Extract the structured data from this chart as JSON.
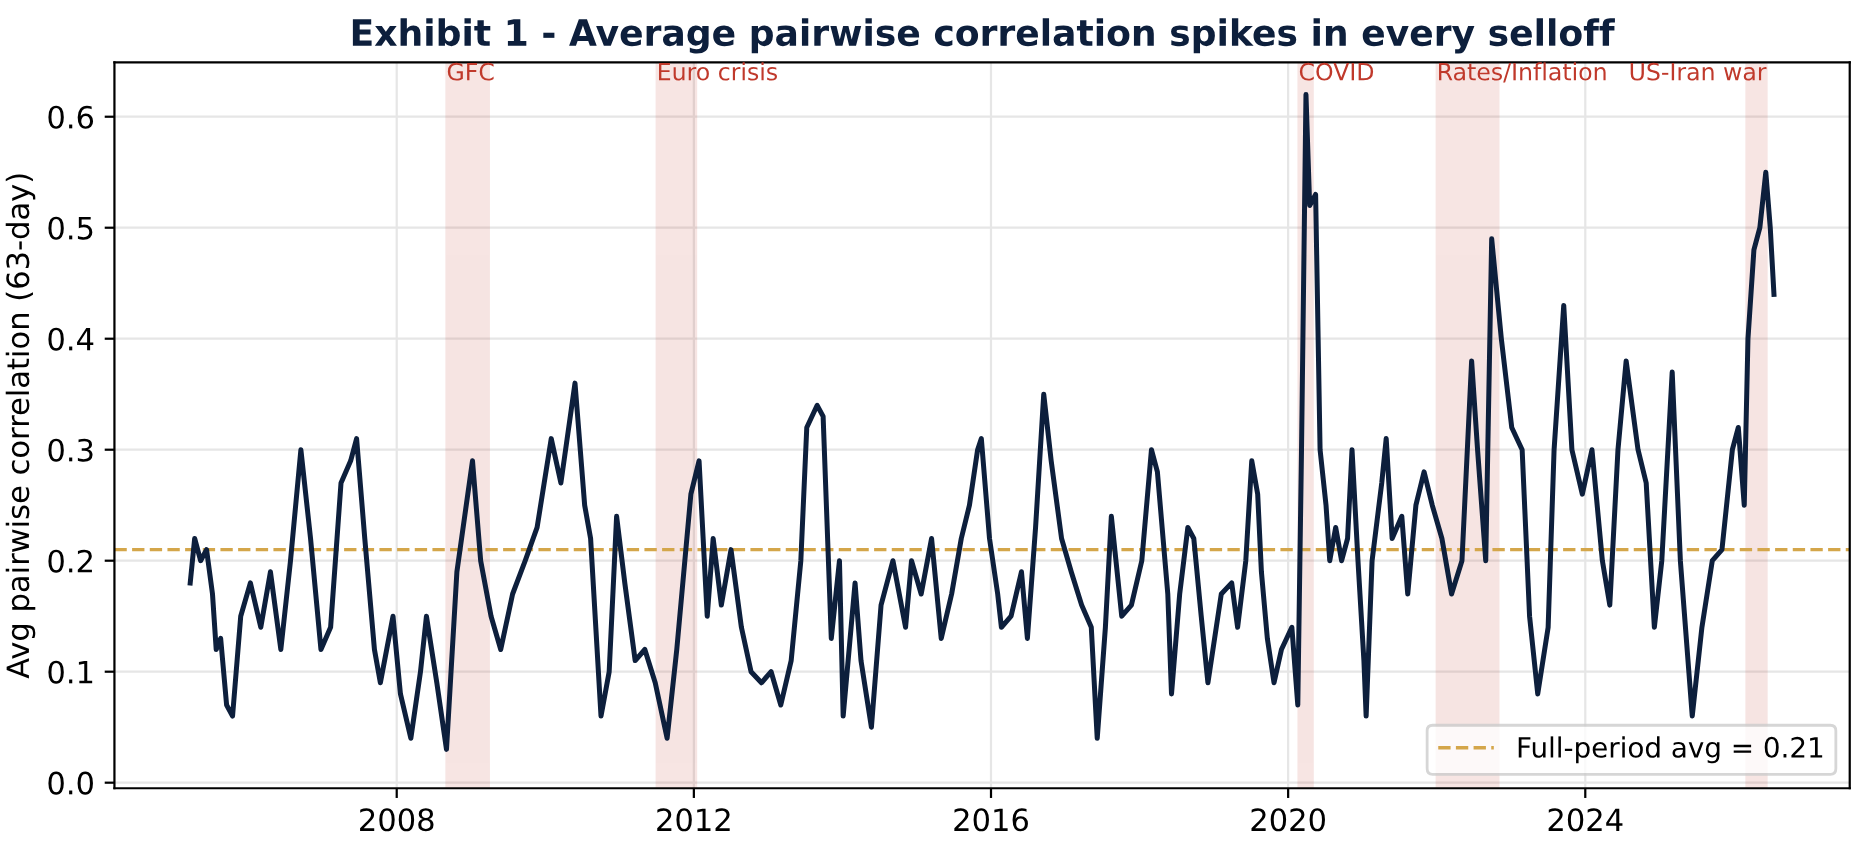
{
  "chart_data": {
    "type": "line",
    "title": "Exhibit 1 - Average pairwise correlation spikes in every selloff",
    "ylabel": "Avg pairwise correlation (63-day)",
    "xlim": [
      2004.2,
      2027.56
    ],
    "xticks": [
      2008,
      2012,
      2016,
      2020,
      2024
    ],
    "ylim": [
      -0.005,
      0.649
    ],
    "yticks": [
      {
        "value": 0,
        "label": "0.0"
      },
      0.1,
      0.2,
      0.3,
      0.4,
      0.5,
      0.6
    ],
    "grid": true,
    "legend": "bottom right",
    "line_style": "solid",
    "marker": "none",
    "series": [
      {
        "color": "#0d1f3c",
        "x": [
          2005.22,
          2005.28,
          2005.36,
          2005.44,
          2005.52,
          2005.57,
          2005.63,
          2005.71,
          2005.79,
          2005.9,
          2006.03,
          2006.17,
          2006.3,
          2006.44,
          2006.57,
          2006.71,
          2006.84,
          2006.98,
          2007.11,
          2007.25,
          2007.38,
          2007.46,
          2007.57,
          2007.7,
          2007.78,
          2007.95,
          2008.05,
          2008.19,
          2008.32,
          2008.4,
          2008.54,
          2008.67,
          2008.81,
          2009.02,
          2009.13,
          2009.27,
          2009.4,
          2009.56,
          2009.73,
          2009.89,
          2010.08,
          2010.21,
          2010.4,
          2010.53,
          2010.61,
          2010.75,
          2010.86,
          2010.96,
          2011.07,
          2011.21,
          2011.34,
          2011.48,
          2011.64,
          2011.77,
          2011.96,
          2012.07,
          2012.18,
          2012.26,
          2012.37,
          2012.5,
          2012.64,
          2012.77,
          2012.91,
          2013.04,
          2013.17,
          2013.31,
          2013.44,
          2013.52,
          2013.66,
          2013.74,
          2013.85,
          2013.96,
          2014.01,
          2014.17,
          2014.25,
          2014.39,
          2014.52,
          2014.68,
          2014.85,
          2014.93,
          2015.06,
          2015.2,
          2015.33,
          2015.47,
          2015.6,
          2015.71,
          2015.82,
          2015.87,
          2015.98,
          2016.09,
          2016.14,
          2016.27,
          2016.41,
          2016.49,
          2016.6,
          2016.71,
          2016.81,
          2016.95,
          2017.08,
          2017.22,
          2017.35,
          2017.43,
          2017.54,
          2017.62,
          2017.76,
          2017.89,
          2018.03,
          2018.16,
          2018.24,
          2018.38,
          2018.43,
          2018.54,
          2018.65,
          2018.73,
          2018.83,
          2018.92,
          2019.1,
          2019.24,
          2019.32,
          2019.43,
          2019.51,
          2019.59,
          2019.64,
          2019.72,
          2019.81,
          2019.91,
          2020.05,
          2020.13,
          2020.18,
          2020.24,
          2020.29,
          2020.37,
          2020.43,
          2020.51,
          2020.56,
          2020.64,
          2020.72,
          2020.8,
          2020.86,
          2020.94,
          2021.02,
          2021.05,
          2021.13,
          2021.26,
          2021.32,
          2021.4,
          2021.53,
          2021.61,
          2021.72,
          2021.83,
          2021.94,
          2022.07,
          2022.2,
          2022.34,
          2022.47,
          2022.55,
          2022.66,
          2022.74,
          2022.87,
          2023.01,
          2023.15,
          2023.25,
          2023.36,
          2023.5,
          2023.58,
          2023.71,
          2023.82,
          2023.96,
          2024.09,
          2024.23,
          2024.33,
          2024.44,
          2024.55,
          2024.71,
          2024.82,
          2024.93,
          2025.03,
          2025.17,
          2025.28,
          2025.44,
          2025.57,
          2025.71,
          2025.84,
          2025.98,
          2026.06,
          2026.14,
          2026.19,
          2026.27,
          2026.35,
          2026.43,
          2026.49,
          2026.54
        ],
        "values": [
          0.18,
          0.22,
          0.2,
          0.21,
          0.17,
          0.12,
          0.13,
          0.07,
          0.06,
          0.15,
          0.18,
          0.14,
          0.19,
          0.12,
          0.2,
          0.3,
          0.22,
          0.12,
          0.14,
          0.27,
          0.29,
          0.31,
          0.22,
          0.12,
          0.09,
          0.15,
          0.08,
          0.04,
          0.1,
          0.15,
          0.09,
          0.03,
          0.19,
          0.29,
          0.2,
          0.15,
          0.12,
          0.17,
          0.2,
          0.23,
          0.31,
          0.27,
          0.36,
          0.25,
          0.22,
          0.06,
          0.1,
          0.24,
          0.18,
          0.11,
          0.12,
          0.09,
          0.04,
          0.12,
          0.26,
          0.29,
          0.15,
          0.22,
          0.16,
          0.21,
          0.14,
          0.1,
          0.09,
          0.1,
          0.07,
          0.11,
          0.2,
          0.32,
          0.34,
          0.33,
          0.13,
          0.2,
          0.06,
          0.18,
          0.11,
          0.05,
          0.16,
          0.2,
          0.14,
          0.2,
          0.17,
          0.22,
          0.13,
          0.17,
          0.22,
          0.25,
          0.3,
          0.31,
          0.22,
          0.17,
          0.14,
          0.15,
          0.19,
          0.13,
          0.23,
          0.35,
          0.29,
          0.22,
          0.19,
          0.16,
          0.14,
          0.04,
          0.14,
          0.24,
          0.15,
          0.16,
          0.2,
          0.3,
          0.28,
          0.17,
          0.08,
          0.17,
          0.23,
          0.22,
          0.15,
          0.09,
          0.17,
          0.18,
          0.14,
          0.2,
          0.29,
          0.26,
          0.19,
          0.13,
          0.09,
          0.12,
          0.14,
          0.07,
          0.3,
          0.62,
          0.52,
          0.53,
          0.3,
          0.25,
          0.2,
          0.23,
          0.2,
          0.22,
          0.3,
          0.2,
          0.11,
          0.06,
          0.2,
          0.27,
          0.31,
          0.22,
          0.24,
          0.17,
          0.25,
          0.28,
          0.25,
          0.22,
          0.17,
          0.2,
          0.38,
          0.3,
          0.2,
          0.49,
          0.4,
          0.32,
          0.3,
          0.15,
          0.08,
          0.14,
          0.3,
          0.43,
          0.3,
          0.26,
          0.3,
          0.2,
          0.16,
          0.3,
          0.38,
          0.3,
          0.27,
          0.14,
          0.2,
          0.37,
          0.2,
          0.06,
          0.14,
          0.2,
          0.21,
          0.3,
          0.32,
          0.25,
          0.4,
          0.48,
          0.5,
          0.55,
          0.5,
          0.44
        ]
      }
    ],
    "ref_lines": [
      {
        "axis": "y",
        "value": 0.21,
        "label": "Full-period avg = 0.21",
        "color": "#d4a64a",
        "line_style": "dashed"
      }
    ],
    "bands": [
      {
        "axis": "x",
        "from": 2008.67,
        "to": 2009.24,
        "label": "GFC",
        "color": "#c0392b"
      },
      {
        "axis": "x",
        "from": 2011.5,
        "to": 2012.03,
        "label": "Euro crisis",
        "color": "#c0392b"
      },
      {
        "axis": "x",
        "from": 2020.14,
        "to": 2020.33,
        "label": "COVID",
        "color": "#c0392b"
      },
      {
        "axis": "x",
        "from": 2022.0,
        "to": 2022.83,
        "label": "Rates/Inflation",
        "color": "#c0392b"
      },
      {
        "axis": "x",
        "from": 2026.17,
        "to": 2026.44,
        "label": "US-Iran war",
        "color": "#c0392b"
      }
    ]
  }
}
